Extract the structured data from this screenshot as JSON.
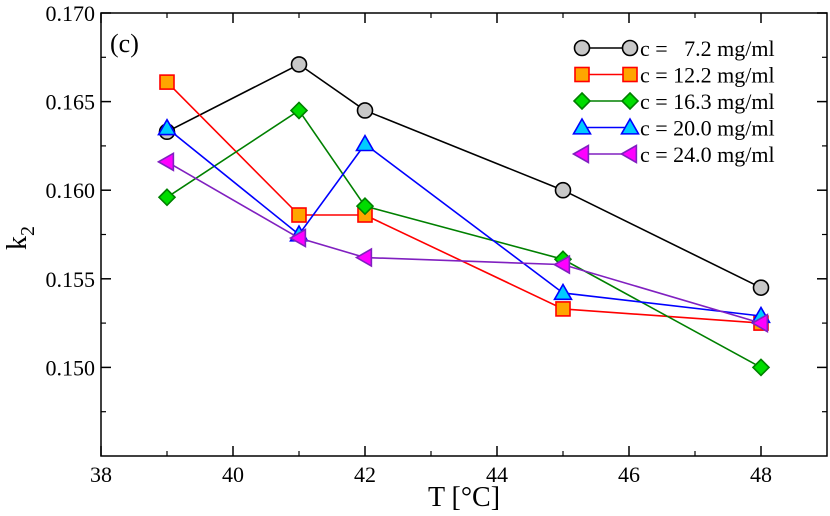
{
  "chart_data": {
    "type": "line",
    "panel_label": "(c)",
    "xlabel": "T [°C]",
    "ylabel_main": "k",
    "ylabel_sub": "2",
    "xlim": [
      38,
      49
    ],
    "ylim": [
      0.145,
      0.17
    ],
    "x_ticks": [
      38,
      40,
      42,
      44,
      46,
      48
    ],
    "y_ticks": [
      0.15,
      0.155,
      0.16,
      0.165,
      0.17
    ],
    "x_tick_labels": [
      "38",
      "40",
      "42",
      "44",
      "46",
      "48"
    ],
    "y_tick_labels": [
      "0.150",
      "0.155",
      "0.160",
      "0.165",
      "0.170"
    ],
    "legend_position": "top-right",
    "series": [
      {
        "name": "c =   7.2 mg/ml",
        "marker": "circle",
        "line_color": "#000000",
        "fill_color": "#c8c8c8",
        "stroke_color": "#000000",
        "x": [
          39,
          41,
          42,
          45,
          48
        ],
        "y": [
          0.1633,
          0.1671,
          0.1645,
          0.16,
          0.1545
        ]
      },
      {
        "name": "c = 12.2 mg/ml",
        "marker": "square",
        "line_color": "#ff0000",
        "fill_color": "#ffa500",
        "stroke_color": "#ff0000",
        "x": [
          39,
          41,
          42,
          45,
          48
        ],
        "y": [
          0.1661,
          0.1586,
          0.1586,
          0.1533,
          0.1525
        ]
      },
      {
        "name": "c = 16.3 mg/ml",
        "marker": "diamond",
        "line_color": "#008000",
        "fill_color": "#00dd00",
        "stroke_color": "#008000",
        "x": [
          39,
          41,
          42,
          45,
          48
        ],
        "y": [
          0.1596,
          0.1645,
          0.1591,
          0.1561,
          0.15
        ]
      },
      {
        "name": "c = 20.0 mg/ml",
        "marker": "triangle-up",
        "line_color": "#0000ff",
        "fill_color": "#00ccff",
        "stroke_color": "#0000ff",
        "x": [
          39,
          41,
          42,
          45,
          48
        ],
        "y": [
          0.1635,
          0.1575,
          0.1626,
          0.1542,
          0.1529
        ]
      },
      {
        "name": "c = 24.0 mg/ml",
        "marker": "triangle-left",
        "line_color": "#8020c0",
        "fill_color": "#ff00ff",
        "stroke_color": "#8020c0",
        "x": [
          39,
          41,
          42,
          45,
          48
        ],
        "y": [
          0.1616,
          0.1573,
          0.1562,
          0.1558,
          0.1525
        ]
      }
    ]
  }
}
